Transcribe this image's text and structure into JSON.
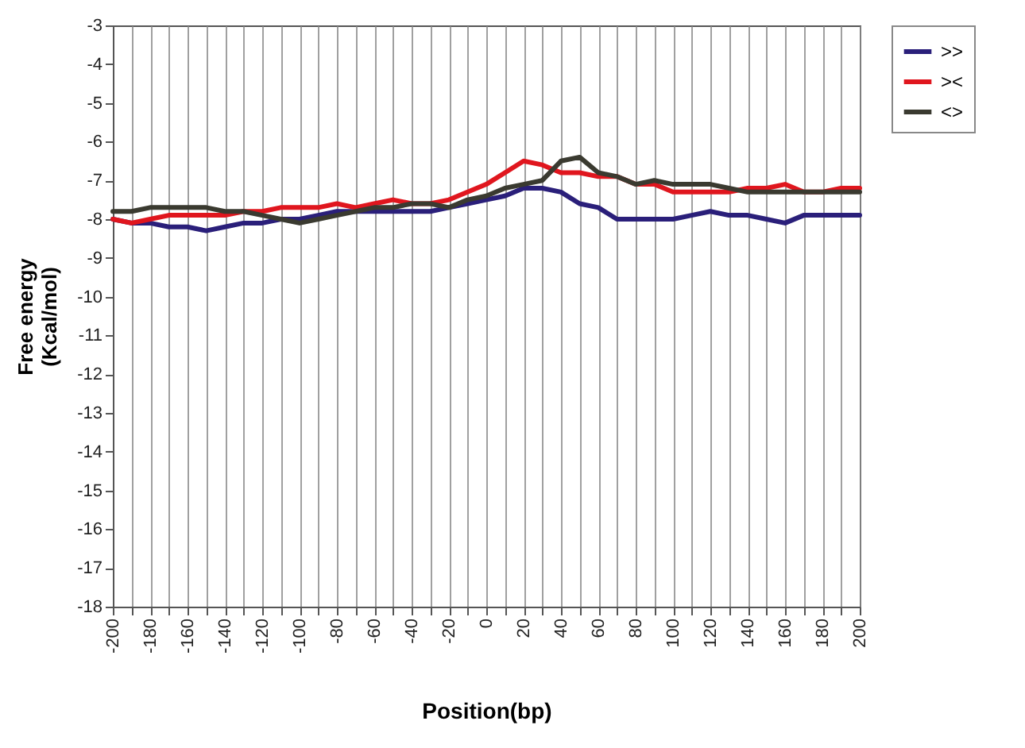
{
  "chart_data": {
    "type": "line",
    "xlabel": "Position(bp)",
    "ylabel": "Free energy\n(Kcal/mol)",
    "x": [
      -200,
      -190,
      -180,
      -170,
      -160,
      -150,
      -140,
      -130,
      -120,
      -110,
      -100,
      -90,
      -80,
      -70,
      -60,
      -50,
      -40,
      -30,
      -20,
      -10,
      0,
      10,
      20,
      30,
      40,
      50,
      60,
      70,
      80,
      90,
      100,
      110,
      120,
      130,
      140,
      150,
      160,
      170,
      180,
      190,
      200
    ],
    "series": [
      {
        "name": ">>",
        "color": "#2a1f7a",
        "values": [
          -8.0,
          -8.1,
          -8.1,
          -8.2,
          -8.2,
          -8.3,
          -8.2,
          -8.1,
          -8.1,
          -8.0,
          -8.0,
          -7.9,
          -7.8,
          -7.8,
          -7.8,
          -7.8,
          -7.8,
          -7.8,
          -7.7,
          -7.6,
          -7.5,
          -7.4,
          -7.2,
          -7.2,
          -7.3,
          -7.6,
          -7.7,
          -8.0,
          -8.0,
          -8.0,
          -8.0,
          -7.9,
          -7.8,
          -7.9,
          -7.9,
          -8.0,
          -8.1,
          -7.9,
          -7.9,
          -7.9,
          -7.9
        ]
      },
      {
        "name": "><",
        "color": "#e0161e",
        "values": [
          -8.0,
          -8.1,
          -8.0,
          -7.9,
          -7.9,
          -7.9,
          -7.9,
          -7.8,
          -7.8,
          -7.7,
          -7.7,
          -7.7,
          -7.6,
          -7.7,
          -7.6,
          -7.5,
          -7.6,
          -7.6,
          -7.5,
          -7.3,
          -7.1,
          -6.8,
          -6.5,
          -6.6,
          -6.8,
          -6.8,
          -6.9,
          -6.9,
          -7.1,
          -7.1,
          -7.3,
          -7.3,
          -7.3,
          -7.3,
          -7.2,
          -7.2,
          -7.1,
          -7.3,
          -7.3,
          -7.2,
          -7.2
        ]
      },
      {
        "name": "<>",
        "color": "#3a3a30",
        "values": [
          -7.8,
          -7.8,
          -7.7,
          -7.7,
          -7.7,
          -7.7,
          -7.8,
          -7.8,
          -7.9,
          -8.0,
          -8.1,
          -8.0,
          -7.9,
          -7.8,
          -7.7,
          -7.7,
          -7.6,
          -7.6,
          -7.7,
          -7.5,
          -7.4,
          -7.2,
          -7.1,
          -7.0,
          -6.5,
          -6.4,
          -6.8,
          -6.9,
          -7.1,
          -7.0,
          -7.1,
          -7.1,
          -7.1,
          -7.2,
          -7.3,
          -7.3,
          -7.3,
          -7.3,
          -7.3,
          -7.3,
          -7.3
        ]
      }
    ],
    "xlim": [
      -200,
      200
    ],
    "xticks": [
      -200,
      {
        "value": -190,
        "label": null
      },
      -180,
      {
        "value": -170,
        "label": null
      },
      -160,
      {
        "value": -150,
        "label": null
      },
      -140,
      {
        "value": -130,
        "label": null
      },
      -120,
      {
        "value": -110,
        "label": null
      },
      -100,
      {
        "value": -90,
        "label": null
      },
      -80,
      {
        "value": -70,
        "label": null
      },
      -60,
      {
        "value": -50,
        "label": null
      },
      -40,
      {
        "value": -30,
        "label": null
      },
      -20,
      {
        "value": -10,
        "label": null
      },
      0,
      {
        "value": 10,
        "label": null
      },
      20,
      {
        "value": 30,
        "label": null
      },
      40,
      {
        "value": 50,
        "label": null
      },
      60,
      {
        "value": 70,
        "label": null
      },
      80,
      {
        "value": 90,
        "label": null
      },
      100,
      {
        "value": 110,
        "label": null
      },
      120,
      {
        "value": 130,
        "label": null
      },
      140,
      {
        "value": 150,
        "label": null
      },
      160,
      {
        "value": 170,
        "label": null
      },
      180,
      {
        "value": 190,
        "label": null
      },
      200
    ],
    "ylim": [
      -18,
      -3
    ],
    "yticks": [
      -18,
      -17,
      -16,
      -15,
      -14,
      -13,
      -12,
      -11,
      -10,
      -9,
      -8,
      -7,
      -6,
      -5,
      -4,
      -3
    ],
    "grid": "x",
    "legend": "right",
    "marker": "none",
    "line_style": "solid"
  }
}
